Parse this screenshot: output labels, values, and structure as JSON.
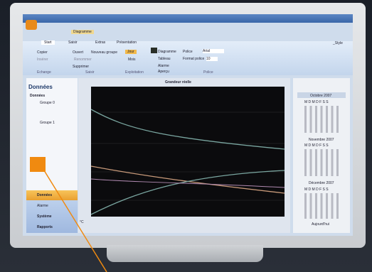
{
  "window": {
    "tab": "Diagramme",
    "style": "_Style"
  },
  "ribbon": {
    "tabs": [
      "Start",
      "Saisir",
      "Extras",
      "Présentation"
    ],
    "buttons": [
      "Copier",
      "Insérer",
      "Ouvert",
      "Renommer",
      "Nouveau groupe",
      "Jour",
      "Mois",
      "Diagramme",
      "Tableau",
      "Police",
      "Arial",
      "Format police",
      "10",
      "Supprimer",
      "Alarme",
      "Aperçu"
    ],
    "groups": [
      "Echange",
      "Saisir",
      "Exploitation",
      "Police"
    ]
  },
  "sidebar": {
    "title": "Données",
    "tree_title": "Données",
    "groups": [
      "Groupe 0",
      "Groupe 1"
    ],
    "nav": [
      "Données",
      "Alarme",
      "Système",
      "Rapports"
    ]
  },
  "plot": {
    "title": "Grandeur réelle",
    "unit": "°C"
  },
  "calendar": {
    "weekdays": "M D M D F S S",
    "months": [
      "Octobre 2007",
      "Novembre 2007",
      "Décembre 2007"
    ],
    "today": "Aujourd'hui"
  }
}
